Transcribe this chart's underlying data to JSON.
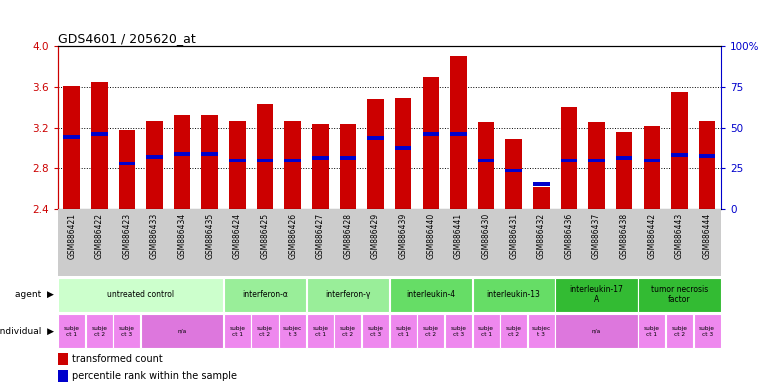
{
  "title": "GDS4601 / 205620_at",
  "samples": [
    "GSM886421",
    "GSM886422",
    "GSM886423",
    "GSM886433",
    "GSM886434",
    "GSM886435",
    "GSM886424",
    "GSM886425",
    "GSM886426",
    "GSM886427",
    "GSM886428",
    "GSM886429",
    "GSM886439",
    "GSM886440",
    "GSM886441",
    "GSM886430",
    "GSM886431",
    "GSM886432",
    "GSM886436",
    "GSM886437",
    "GSM886438",
    "GSM886442",
    "GSM886443",
    "GSM886444"
  ],
  "transformed_count": [
    3.61,
    3.65,
    3.18,
    3.27,
    3.32,
    3.32,
    3.27,
    3.43,
    3.27,
    3.24,
    3.24,
    3.48,
    3.49,
    3.7,
    3.9,
    3.26,
    3.09,
    2.62,
    3.4,
    3.26,
    3.16,
    3.22,
    3.55,
    3.27
  ],
  "percentile_rank": [
    3.11,
    3.14,
    2.85,
    2.91,
    2.94,
    2.94,
    2.88,
    2.88,
    2.88,
    2.9,
    2.9,
    3.1,
    3.0,
    3.14,
    3.14,
    2.88,
    2.78,
    2.65,
    2.88,
    2.88,
    2.9,
    2.88,
    2.93,
    2.92
  ],
  "ymin": 2.4,
  "ymax": 4.0,
  "yticks_left": [
    2.4,
    2.8,
    3.2,
    3.6,
    4.0
  ],
  "yticks_right": [
    0,
    25,
    50,
    75,
    100
  ],
  "ytick_labels_right": [
    "0",
    "25",
    "50",
    "75",
    "100%"
  ],
  "agent_groups": [
    {
      "label": "untreated control",
      "start": 0,
      "end": 5,
      "color": "#ccffcc"
    },
    {
      "label": "interferon-α",
      "start": 6,
      "end": 8,
      "color": "#99ee99"
    },
    {
      "label": "interferon-γ",
      "start": 9,
      "end": 11,
      "color": "#99ee99"
    },
    {
      "label": "interleukin-4",
      "start": 12,
      "end": 14,
      "color": "#66dd66"
    },
    {
      "label": "interleukin-13",
      "start": 15,
      "end": 17,
      "color": "#66dd66"
    },
    {
      "label": "interleukin-17\nA",
      "start": 18,
      "end": 20,
      "color": "#33bb33"
    },
    {
      "label": "tumor necrosis\nfactor",
      "start": 21,
      "end": 23,
      "color": "#33bb33"
    }
  ],
  "individual_groups": [
    {
      "label": "subje\nct 1",
      "start": 0,
      "end": 0,
      "color": "#ee88ee"
    },
    {
      "label": "subje\nct 2",
      "start": 1,
      "end": 1,
      "color": "#ee88ee"
    },
    {
      "label": "subje\nct 3",
      "start": 2,
      "end": 2,
      "color": "#ee88ee"
    },
    {
      "label": "n/a",
      "start": 3,
      "end": 5,
      "color": "#dd77dd"
    },
    {
      "label": "subje\nct 1",
      "start": 6,
      "end": 6,
      "color": "#ee88ee"
    },
    {
      "label": "subje\nct 2",
      "start": 7,
      "end": 7,
      "color": "#ee88ee"
    },
    {
      "label": "subjec\nt 3",
      "start": 8,
      "end": 8,
      "color": "#ee88ee"
    },
    {
      "label": "subje\nct 1",
      "start": 9,
      "end": 9,
      "color": "#ee88ee"
    },
    {
      "label": "subje\nct 2",
      "start": 10,
      "end": 10,
      "color": "#ee88ee"
    },
    {
      "label": "subje\nct 3",
      "start": 11,
      "end": 11,
      "color": "#ee88ee"
    },
    {
      "label": "subje\nct 1",
      "start": 12,
      "end": 12,
      "color": "#ee88ee"
    },
    {
      "label": "subje\nct 2",
      "start": 13,
      "end": 13,
      "color": "#ee88ee"
    },
    {
      "label": "subje\nct 3",
      "start": 14,
      "end": 14,
      "color": "#ee88ee"
    },
    {
      "label": "subje\nct 1",
      "start": 15,
      "end": 15,
      "color": "#ee88ee"
    },
    {
      "label": "subje\nct 2",
      "start": 16,
      "end": 16,
      "color": "#ee88ee"
    },
    {
      "label": "subjec\nt 3",
      "start": 17,
      "end": 17,
      "color": "#ee88ee"
    },
    {
      "label": "n/a",
      "start": 18,
      "end": 20,
      "color": "#dd77dd"
    },
    {
      "label": "subje\nct 1",
      "start": 21,
      "end": 21,
      "color": "#ee88ee"
    },
    {
      "label": "subje\nct 2",
      "start": 22,
      "end": 22,
      "color": "#ee88ee"
    },
    {
      "label": "subje\nct 3",
      "start": 23,
      "end": 23,
      "color": "#ee88ee"
    }
  ],
  "bar_color": "#cc0000",
  "percentile_color": "#0000cc",
  "axis_color_left": "#cc0000",
  "axis_color_right": "#0000cc",
  "bar_width": 0.6,
  "sample_bg_color": "#cccccc",
  "legend_items": [
    {
      "label": "transformed count",
      "color": "#cc0000"
    },
    {
      "label": "percentile rank within the sample",
      "color": "#0000cc"
    }
  ]
}
